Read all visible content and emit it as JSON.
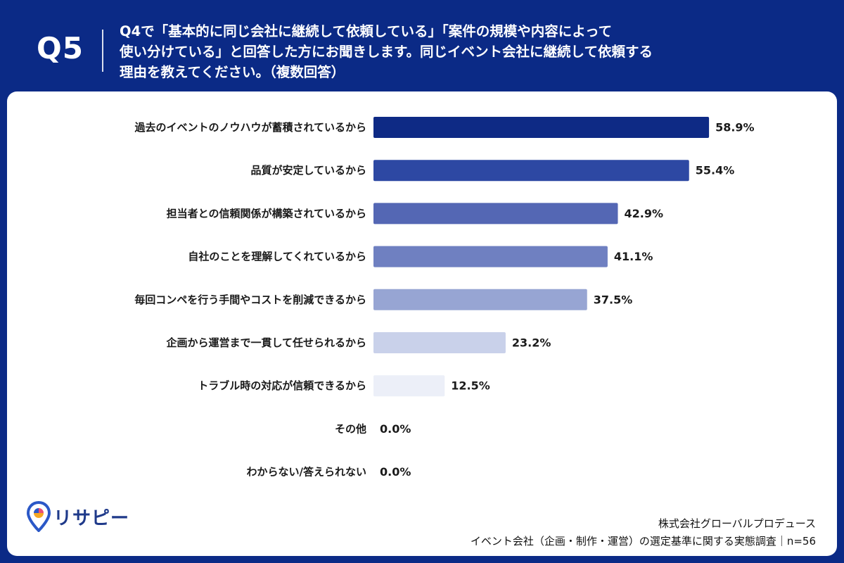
{
  "header": {
    "q_label": "Q5",
    "question_lines": [
      "Q4で「基本的に同じ会社に継続して依頼している」「案件の規模や内容によって",
      "使い分けている」と回答した方にお聞きします。同じイベント会社に継続して依頼する",
      "理由を教えてください。（複数回答）"
    ]
  },
  "chart_data": {
    "type": "bar",
    "orientation": "horizontal",
    "categories": [
      "過去のイベントのノウハウが蓄積されているから",
      "品質が安定しているから",
      "担当者との信頼関係が構築されているから",
      "自社のことを理解してくれているから",
      "毎回コンペを行う手間やコストを削減できるから",
      "企画から運営まで一貫して任せられるから",
      "トラブル時の対応が信頼できるから",
      "その他",
      "わからない/答えられない"
    ],
    "values": [
      58.9,
      55.4,
      42.9,
      41.1,
      37.5,
      23.2,
      12.5,
      0.0,
      0.0
    ],
    "value_labels": [
      "58.9%",
      "55.4%",
      "42.9%",
      "41.1%",
      "37.5%",
      "23.2%",
      "12.5%",
      "0.0%",
      "0.0%"
    ],
    "colors": [
      "#0e2a85",
      "#2d48a3",
      "#5467b4",
      "#6f80c1",
      "#97a5d3",
      "#c9d1ea",
      "#eceff8",
      "#ffffff",
      "#ffffff"
    ],
    "title": "",
    "xlabel": "",
    "ylabel": "",
    "grid": false,
    "legend": "none"
  },
  "brand": {
    "logo_text": "リサピー",
    "logo_colors": [
      "#2b58c7",
      "#f5a623",
      "#e94e77"
    ]
  },
  "footer": {
    "company": "株式会社グローバルプロデュース",
    "survey": "イベント会社（企画・制作・運営）の選定基準に関する実態調査｜n=56"
  }
}
